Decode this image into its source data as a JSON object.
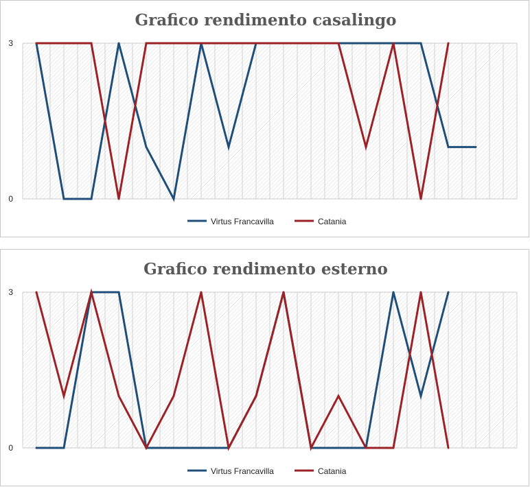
{
  "chart_data": [
    {
      "type": "line",
      "title": "Grafico rendimento casalingo",
      "xlabel": "",
      "ylabel": "",
      "ylim": [
        0,
        3
      ],
      "yticks": [
        0,
        3
      ],
      "x": [
        1,
        2,
        3,
        4,
        5,
        6,
        7,
        8,
        9,
        10,
        11,
        12,
        13,
        14,
        15,
        16,
        17
      ],
      "x_slots": 18,
      "grid": true,
      "legend_position": "bottom",
      "series": [
        {
          "name": "Virtus Francavilla",
          "color": "#1f4e79",
          "values": [
            3,
            0,
            0,
            3,
            1,
            0,
            3,
            1,
            3,
            3,
            3,
            3,
            3,
            3,
            3,
            1,
            1
          ]
        },
        {
          "name": "Catania",
          "color": "#9b2226",
          "values": [
            3,
            3,
            3,
            0,
            3,
            3,
            3,
            3,
            3,
            3,
            3,
            3,
            1,
            3,
            0,
            3,
            null
          ]
        }
      ]
    },
    {
      "type": "line",
      "title": "Grafico rendimento esterno",
      "xlabel": "",
      "ylabel": "",
      "ylim": [
        0,
        3
      ],
      "yticks": [
        0,
        3
      ],
      "x": [
        1,
        2,
        3,
        4,
        5,
        6,
        7,
        8,
        9,
        10,
        11,
        12,
        13,
        14,
        15,
        16,
        17
      ],
      "x_slots": 18,
      "grid": true,
      "legend_position": "bottom",
      "series": [
        {
          "name": "Virtus Francavilla",
          "color": "#1f4e79",
          "values": [
            0,
            0,
            3,
            3,
            0,
            0,
            0,
            0,
            1,
            3,
            0,
            0,
            0,
            3,
            1,
            3,
            null
          ]
        },
        {
          "name": "Catania",
          "color": "#9b2226",
          "values": [
            3,
            1,
            3,
            1,
            0,
            1,
            3,
            0,
            1,
            3,
            0,
            1,
            0,
            0,
            3,
            0,
            null
          ]
        }
      ]
    }
  ]
}
